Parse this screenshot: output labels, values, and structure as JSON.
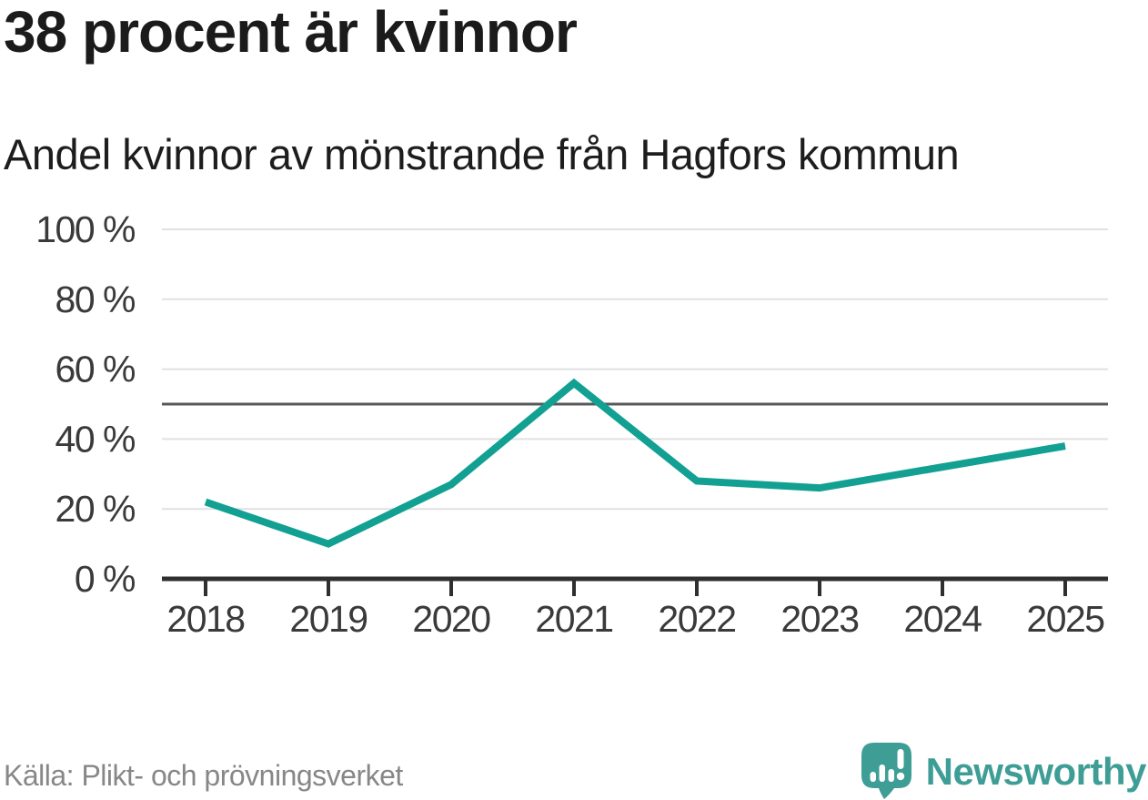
{
  "header": {
    "title": "38 procent är kvinnor",
    "subtitle": "Andel kvinnor av mönstrande från Hagfors kommun"
  },
  "footer": {
    "source": "Källa: Plikt- och prövningsverket",
    "logo_text": "Newsworthy"
  },
  "colors": {
    "line": "#12a092",
    "reference_line": "#58585a",
    "grid": "#e1e1e1",
    "axis": "#2f2f2f",
    "axis_text": "#3a3a3a",
    "title_text": "#1b1b1b",
    "muted_text": "#878787",
    "logo_teal": "#3e9e96",
    "background": "#ffffff"
  },
  "icons": {
    "logo_icon": "newsworthy-speech-bubble-barchart-icon"
  },
  "chart_data": {
    "type": "line",
    "title": "38 procent är kvinnor",
    "subtitle": "Andel kvinnor av mönstrande från Hagfors kommun",
    "x": [
      2018,
      2019,
      2020,
      2021,
      2022,
      2023,
      2024,
      2025
    ],
    "series": [
      {
        "name": "Andel kvinnor av mönstrande",
        "values": [
          22,
          10,
          27,
          56,
          28,
          26,
          32,
          38
        ]
      }
    ],
    "unit": "%",
    "ylim": [
      0,
      100
    ],
    "yticks": [
      0,
      20,
      40,
      60,
      80,
      100
    ],
    "ytick_format": "{v} %",
    "reference_line": 50,
    "grid": true,
    "legend": false,
    "xlabel": "",
    "ylabel": ""
  }
}
